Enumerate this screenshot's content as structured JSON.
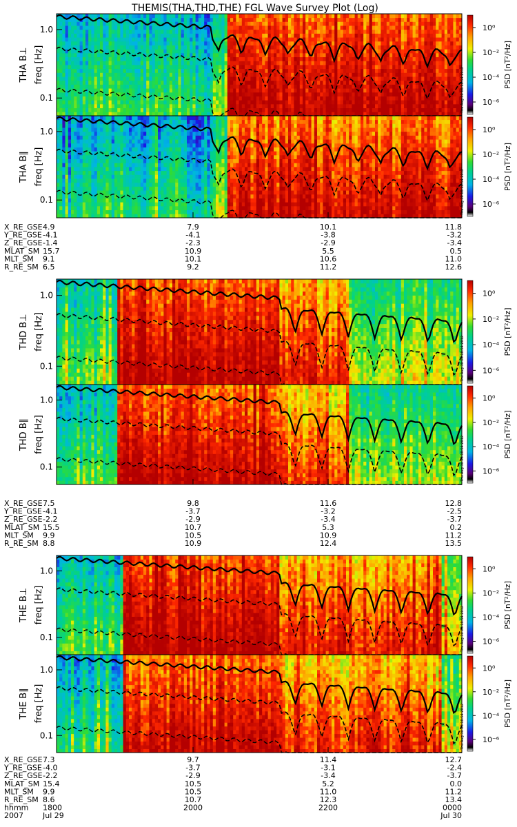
{
  "chart_data": {
    "type": "heatmap",
    "title": "THEMIS(THA,THD,THE) FGL Wave Survey Plot (Log)",
    "x_tick_labels": {
      "hhmm": [
        "1800",
        "2000",
        "2200",
        "0000"
      ],
      "date": [
        "2007",
        "Jul 29",
        "Jul 30"
      ]
    },
    "colorbar": {
      "label": "PSD [nT²/Hz]",
      "tick_labels": [
        "10⁰",
        "10⁻²",
        "10⁻⁴",
        "10⁻⁶"
      ],
      "log_range": [
        -7,
        1
      ]
    },
    "y_axis": {
      "label": "freq [Hz]",
      "tick_labels": [
        "1.0",
        "0.1"
      ]
    },
    "timestamp": "Thu Aug 30 18:18:54 2012",
    "probes": [
      {
        "panels": [
          "THA B⊥",
          "THA B∥"
        ],
        "ephemeris": [
          {
            "name": "X_RE_GSE",
            "values": [
              "4.9",
              "7.9",
              "10.1",
              "11.8"
            ]
          },
          {
            "name": "Y_RE_GSE",
            "values": [
              "-4.1",
              "-4.1",
              "-3.8",
              "-3.2"
            ]
          },
          {
            "name": "Z_RE_GSE",
            "values": [
              "-1.4",
              "-2.3",
              "-2.9",
              "-3.4"
            ]
          },
          {
            "name": "MLAT_SM",
            "values": [
              "15.7",
              "10.9",
              "5.5",
              "0.5"
            ]
          },
          {
            "name": "MLT_SM",
            "values": [
              "9.1",
              "10.1",
              "10.6",
              "11.0"
            ]
          },
          {
            "name": "R_RE_SM",
            "values": [
              "6.5",
              "9.2",
              "11.2",
              "12.6"
            ]
          }
        ]
      },
      {
        "panels": [
          "THD B⊥",
          "THD B∥"
        ],
        "ephemeris": [
          {
            "name": "X_RE_GSE",
            "values": [
              "7.5",
              "9.8",
              "11.6",
              "12.8"
            ]
          },
          {
            "name": "Y_RE_GSE",
            "values": [
              "-4.1",
              "-3.7",
              "-3.2",
              "-2.5"
            ]
          },
          {
            "name": "Z_RE_GSE",
            "values": [
              "-2.2",
              "-2.9",
              "-3.4",
              "-3.7"
            ]
          },
          {
            "name": "MLAT_SM",
            "values": [
              "15.5",
              "10.7",
              "5.3",
              "0.2"
            ]
          },
          {
            "name": "MLT_SM",
            "values": [
              "9.9",
              "10.5",
              "10.9",
              "11.2"
            ]
          },
          {
            "name": "R_RE_SM",
            "values": [
              "8.8",
              "10.9",
              "12.4",
              "13.5"
            ]
          }
        ]
      },
      {
        "panels": [
          "THE B⊥",
          "THE B∥"
        ],
        "ephemeris": [
          {
            "name": "X_RE_GSE",
            "values": [
              "7.3",
              "9.7",
              "11.4",
              "12.7"
            ]
          },
          {
            "name": "Y_RE_GSE",
            "values": [
              "-4.0",
              "-3.7",
              "-3.1",
              "-2.4"
            ]
          },
          {
            "name": "Z_RE_GSE",
            "values": [
              "-2.2",
              "-2.9",
              "-3.4",
              "-3.7"
            ]
          },
          {
            "name": "MLAT_SM",
            "values": [
              "15.4",
              "10.5",
              "5.2",
              "0.0"
            ]
          },
          {
            "name": "MLT_SM",
            "values": [
              "9.9",
              "10.5",
              "11.0",
              "11.2"
            ]
          },
          {
            "name": "R_RE_SM",
            "values": [
              "8.6",
              "10.7",
              "12.3",
              "13.4"
            ]
          }
        ]
      }
    ]
  }
}
